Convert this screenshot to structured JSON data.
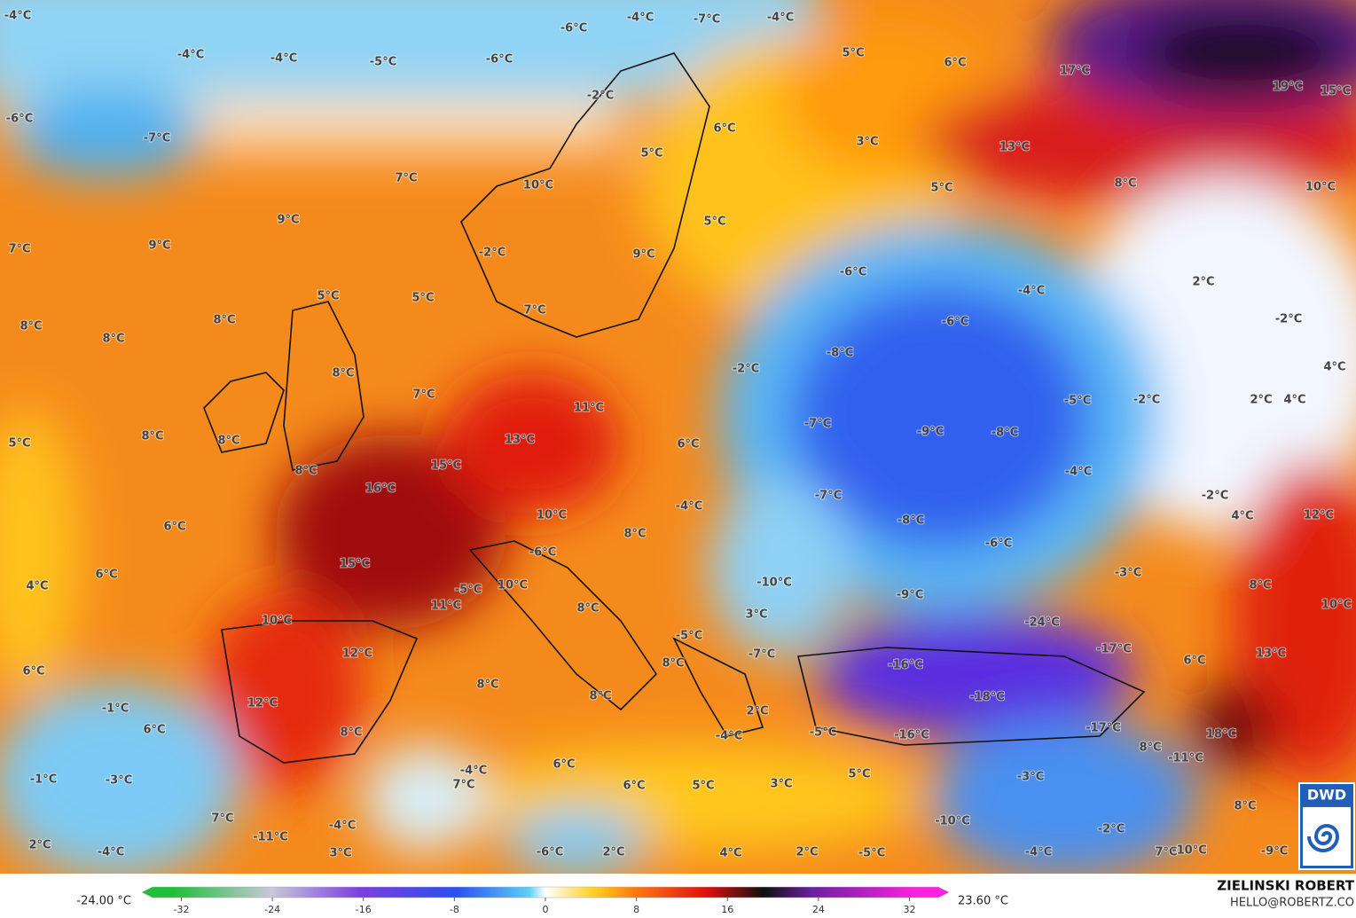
{
  "map": {
    "labels": [
      "-4°C",
      "-6°C",
      "-4°C",
      "-7°C",
      "-4°C",
      "-4°C",
      "-4°C",
      "-5°C",
      "-6°C",
      "5°C",
      "6°C",
      "17°C",
      "19°C",
      "15°C",
      "-6°C",
      "-7°C",
      "-2°C",
      "6°C",
      "3°C",
      "13°C",
      "5°C",
      "7°C",
      "10°C",
      "5°C",
      "8°C",
      "10°C",
      "9°C",
      "5°C",
      "9°C",
      "7°C",
      "-2°C",
      "9°C",
      "-6°C",
      "-4°C",
      "2°C",
      "5°C",
      "5°C",
      "7°C",
      "-6°C",
      "-2°C",
      "8°C",
      "8°C",
      "8°C",
      "-8°C",
      "4°C",
      "-2°C",
      "8°C",
      "7°C",
      "11°C",
      "-5°C",
      "-2°C",
      "2°C",
      "4°C",
      "-7°C",
      "-9°C",
      "-8°C",
      "8°C",
      "5°C",
      "8°C",
      "13°C",
      "6°C",
      "15°C",
      "8°C",
      "-4°C",
      "16°C",
      "-7°C",
      "-2°C",
      "10°C",
      "-4°C",
      "-8°C",
      "4°C",
      "12°C",
      "6°C",
      "8°C",
      "-6°C",
      "-6°C",
      "15°C",
      "6°C",
      "-3°C",
      "10°C",
      "-10°C",
      "4°C",
      "8°C",
      "-5°C",
      "-9°C",
      "11°C",
      "8°C",
      "3°C",
      "10°C",
      "10°C",
      "-24°C",
      "-5°C",
      "-17°C",
      "12°C",
      "-7°C",
      "-16°C",
      "13°C",
      "6°C",
      "8°C",
      "6°C",
      "8°C",
      "-18°C",
      "8°C",
      "-1°C",
      "12°C",
      "2°C",
      "6°C",
      "8°C",
      "-4°C",
      "-5°C",
      "-16°C",
      "-17°C",
      "18°C",
      "8°C",
      "-11°C",
      "-4°C",
      "6°C",
      "5°C",
      "-1°C",
      "-3°C",
      "7°C",
      "6°C",
      "5°C",
      "3°C",
      "-3°C",
      "8°C",
      "7°C",
      "-10°C",
      "-11°C",
      "-4°C",
      "-2°C",
      "2°C",
      "-4°C",
      "3°C",
      "-6°C",
      "2°C",
      "4°C",
      "2°C",
      "-5°C",
      "-4°C",
      "7°C",
      "-10°C",
      "-9°C"
    ],
    "colorbar": {
      "min_label": "-24.00 °C",
      "max_label": "23.60 °C",
      "range": [
        -35,
        35
      ],
      "ticks": [
        -32,
        -24,
        -16,
        -8,
        0,
        8,
        16,
        24,
        32
      ]
    },
    "credit": {
      "name": "ZIELINSKI ROBERT",
      "email": "HELLO@ROBERTZ.CO"
    },
    "logo": "DWD"
  }
}
